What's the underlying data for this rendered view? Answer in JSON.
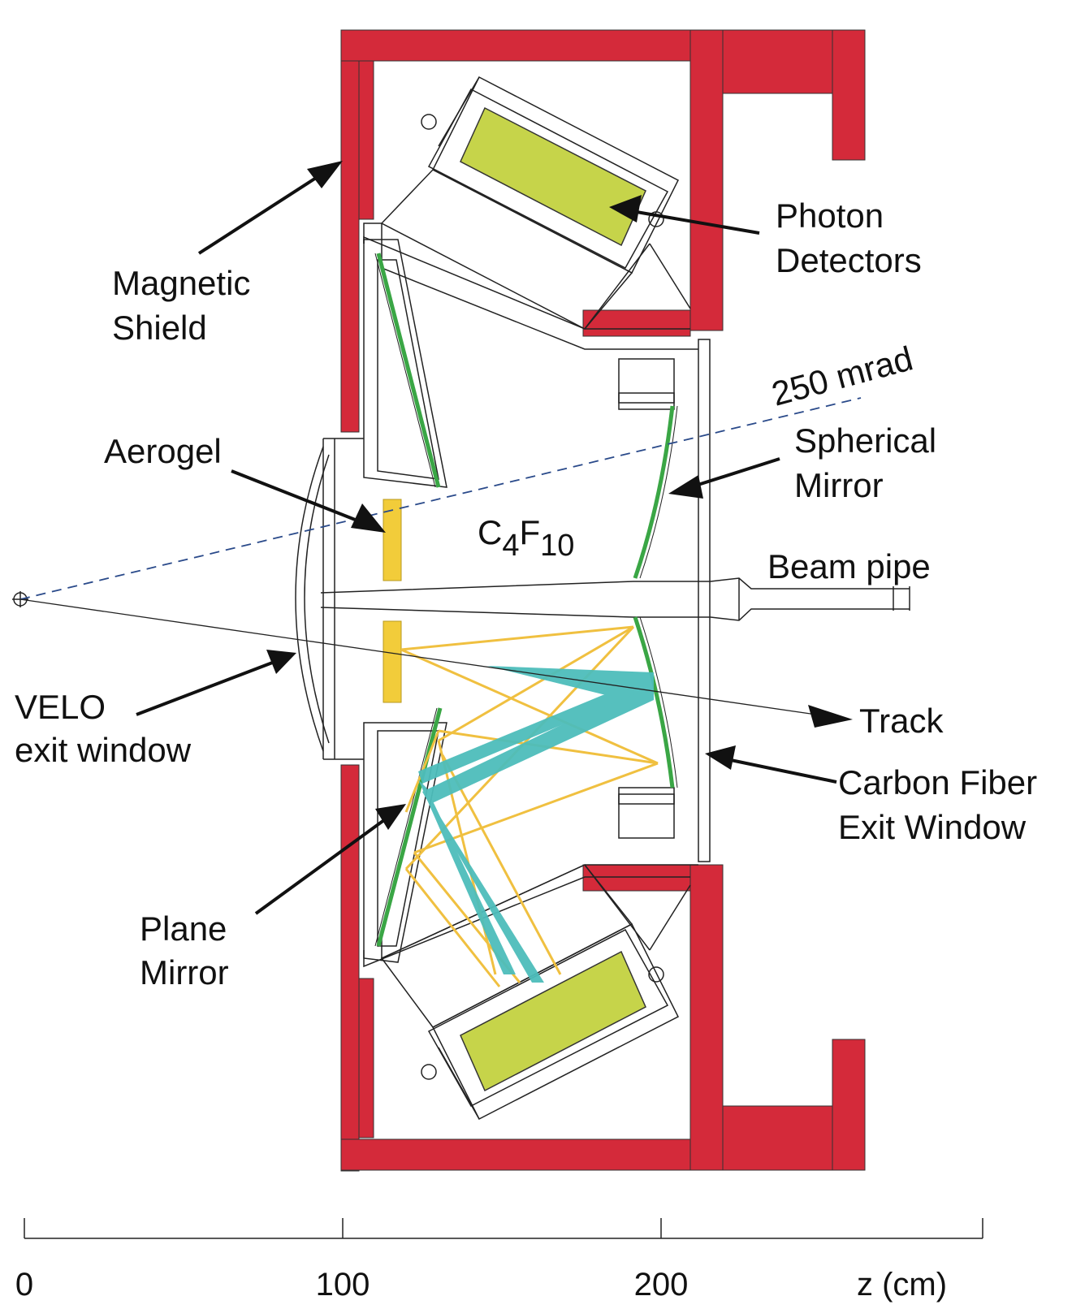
{
  "labels": {
    "magnetic_shield": [
      "Magnetic",
      "Shield"
    ],
    "photon_detectors": [
      "Photon",
      "Detectors"
    ],
    "aerogel": "Aerogel",
    "angle": "250 mrad",
    "spherical_mirror": [
      "Spherical",
      "Mirror"
    ],
    "gas_main": "C",
    "gas_sub1": "4",
    "gas_mid": "F",
    "gas_sub2": "10",
    "beam_pipe": "Beam pipe",
    "velo_exit_window": [
      "VELO",
      "exit window"
    ],
    "track": "Track",
    "carbon_fiber": [
      "Carbon Fiber",
      "Exit Window"
    ],
    "plane_mirror": [
      "Plane",
      "Mirror"
    ]
  },
  "axis": {
    "ticks": [
      {
        "value": 0,
        "label": "0"
      },
      {
        "value": 100,
        "label": "100"
      },
      {
        "value": 200,
        "label": "200"
      }
    ],
    "unit_label": "z  (cm)"
  },
  "colors": {
    "shield": "#d42a3a",
    "detector": "#c6d44a",
    "aerogel": "#f2cc3a",
    "mirror": "#3aa645",
    "cherenkov_gas": "#4dbdbb",
    "cherenkov_aerogel": "#f0c040",
    "dashed_line": "#2a4a8a"
  }
}
